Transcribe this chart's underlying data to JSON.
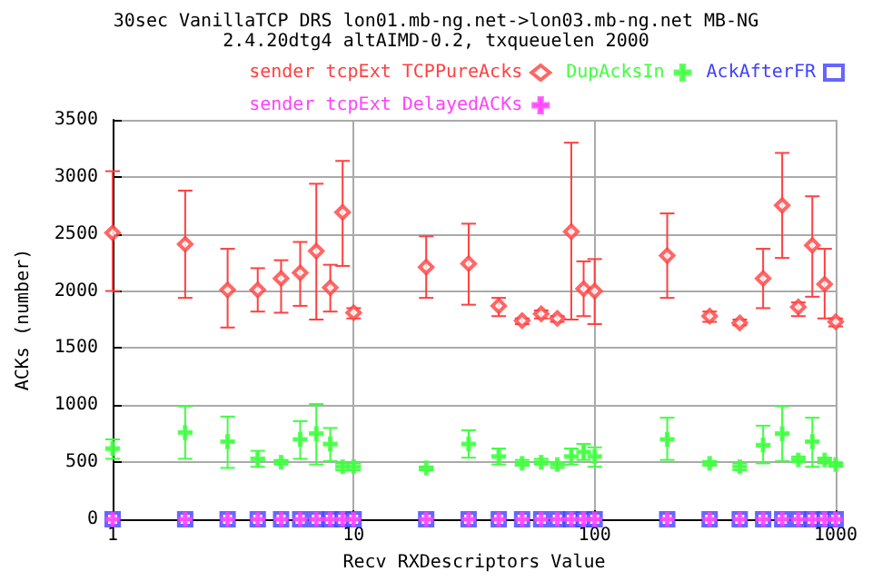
{
  "chart_data": {
    "type": "scatter",
    "title": "30sec VanillaTCP DRS lon01.mb-ng.net->lon03.mb-ng.net MB-NG",
    "subtitle": "2.4.20dtg4 altAIMD-0.2, txqueuelen 2000",
    "xlabel": "Recv RXDescriptors Value",
    "ylabel": "ACKs (number)",
    "x": [
      1,
      2,
      3,
      4,
      5,
      6,
      7,
      8,
      9,
      10,
      20,
      30,
      40,
      50,
      60,
      70,
      80,
      90,
      100,
      200,
      300,
      400,
      500,
      600,
      700,
      800,
      900,
      1000
    ],
    "series": [
      {
        "name": "sender tcpExt TCPPureAcks",
        "color": "#ff4040",
        "marker": "diamond",
        "values": [
          2510,
          2410,
          2010,
          2010,
          2110,
          2160,
          2350,
          2030,
          2690,
          1810,
          2210,
          2240,
          1870,
          1740,
          1800,
          1760,
          2520,
          2020,
          2000,
          2310,
          1780,
          1720,
          2110,
          2750,
          1860,
          2400,
          2060,
          1730
        ],
        "errors": [
          [
            2000,
            3050
          ],
          [
            1940,
            2880
          ],
          [
            1680,
            2370
          ],
          [
            1820,
            2200
          ],
          [
            1810,
            2270
          ],
          [
            1870,
            2430
          ],
          [
            1750,
            2940
          ],
          [
            1820,
            2230
          ],
          [
            2220,
            3140
          ],
          [
            1760,
            1850
          ],
          [
            1940,
            2480
          ],
          [
            1880,
            2590
          ],
          [
            1780,
            1940
          ],
          [
            1710,
            1760
          ],
          [
            1760,
            1830
          ],
          [
            1730,
            1780
          ],
          [
            1750,
            3300
          ],
          [
            1780,
            2260
          ],
          [
            1710,
            2280
          ],
          [
            1940,
            2680
          ],
          [
            1730,
            1820
          ],
          [
            1700,
            1750
          ],
          [
            1850,
            2370
          ],
          [
            2290,
            3210
          ],
          [
            1780,
            1900
          ],
          [
            1950,
            2830
          ],
          [
            1760,
            2370
          ],
          [
            1690,
            1760
          ]
        ]
      },
      {
        "name": "DupAcksIn",
        "color": "#40ff40",
        "marker": "cross",
        "values": [
          620,
          760,
          680,
          530,
          500,
          700,
          750,
          660,
          460,
          460,
          450,
          660,
          550,
          490,
          500,
          480,
          550,
          590,
          550,
          700,
          490,
          460,
          650,
          750,
          520,
          680,
          520,
          480
        ],
        "errors": [
          [
            530,
            700
          ],
          [
            530,
            990
          ],
          [
            450,
            900
          ],
          [
            460,
            600
          ],
          [
            480,
            520
          ],
          [
            530,
            860
          ],
          [
            480,
            1010
          ],
          [
            510,
            800
          ],
          [
            430,
            490
          ],
          [
            430,
            490
          ],
          [
            430,
            460
          ],
          [
            540,
            780
          ],
          [
            480,
            620
          ],
          [
            470,
            520
          ],
          [
            480,
            530
          ],
          [
            450,
            500
          ],
          [
            480,
            620
          ],
          [
            520,
            660
          ],
          [
            460,
            630
          ],
          [
            520,
            890
          ],
          [
            470,
            510
          ],
          [
            430,
            490
          ],
          [
            490,
            820
          ],
          [
            510,
            990
          ],
          [
            500,
            550
          ],
          [
            460,
            890
          ],
          [
            490,
            540
          ],
          [
            460,
            500
          ]
        ]
      },
      {
        "name": "AckAfterFR",
        "color": "#4040ff",
        "marker": "square",
        "values": [
          0,
          0,
          0,
          0,
          0,
          0,
          0,
          0,
          0,
          0,
          0,
          0,
          0,
          0,
          0,
          0,
          0,
          0,
          0,
          0,
          0,
          0,
          0,
          0,
          0,
          0,
          0,
          0
        ]
      },
      {
        "name": "sender tcpExt DelayedACKs",
        "color": "#ff40ff",
        "marker": "cross",
        "values": [
          0,
          0,
          0,
          0,
          0,
          0,
          0,
          0,
          0,
          0,
          0,
          0,
          0,
          0,
          0,
          0,
          0,
          0,
          0,
          0,
          0,
          0,
          0,
          0,
          0,
          0,
          0,
          0
        ]
      }
    ],
    "log": "x",
    "xlim": [
      1,
      1000
    ],
    "xticks": [
      1,
      10,
      100,
      1000
    ],
    "ylim": [
      0,
      3500
    ],
    "yticks": [
      0,
      500,
      1000,
      1500,
      2000,
      2500,
      3000,
      3500
    ],
    "grid": true,
    "legend": "top right"
  }
}
